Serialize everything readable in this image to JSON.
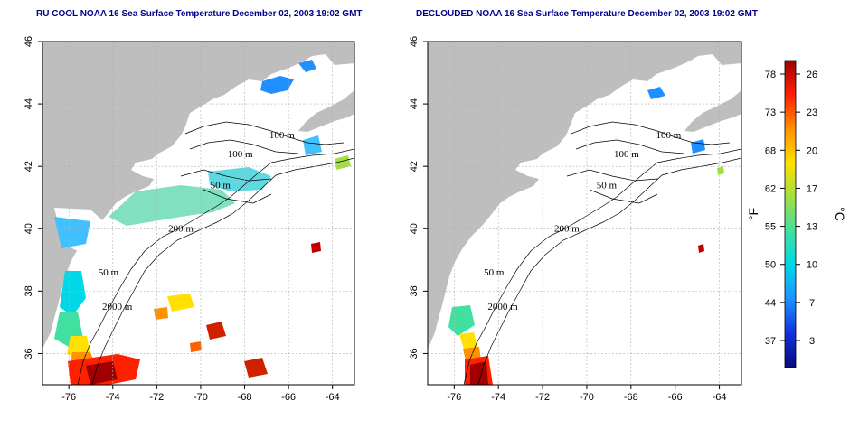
{
  "panels": [
    {
      "title": "RU COOL NOAA 16 Sea Surface Temperature December 02, 2003 19:02 GMT",
      "contours": [
        {
          "label": "100 m",
          "lon": -66.3,
          "lat": 42.9
        },
        {
          "label": "100 m",
          "lon": -68.2,
          "lat": 42.3
        },
        {
          "label": "50 m",
          "lon": -69.1,
          "lat": 41.3
        },
        {
          "label": "200 m",
          "lon": -70.9,
          "lat": 39.9
        },
        {
          "label": "50 m",
          "lon": -74.2,
          "lat": 38.5
        },
        {
          "label": "2000 m",
          "lon": -73.8,
          "lat": 37.4
        }
      ]
    },
    {
      "title": "DECLOUDED NOAA 16 Sea Surface Temperature December 02, 2003 19:02 GMT",
      "contours": [
        {
          "label": "100 m",
          "lon": -66.3,
          "lat": 42.9
        },
        {
          "label": "100 m",
          "lon": -68.2,
          "lat": 42.3
        },
        {
          "label": "50 m",
          "lon": -69.1,
          "lat": 41.3
        },
        {
          "label": "200 m",
          "lon": -70.9,
          "lat": 39.9
        },
        {
          "label": "50 m",
          "lon": -74.2,
          "lat": 38.5
        },
        {
          "label": "2000 m",
          "lon": -73.8,
          "lat": 37.4
        }
      ]
    }
  ],
  "axes": {
    "lon_ticks": [
      "-76",
      "-74",
      "-72",
      "-70",
      "-68",
      "-66",
      "-64"
    ],
    "lat_ticks": [
      "36",
      "38",
      "40",
      "42",
      "44",
      "46"
    ],
    "lon_range": [
      -77.2,
      -63.0
    ],
    "lat_range": [
      35.0,
      46.0
    ]
  },
  "colorbar": {
    "f_label": "°F",
    "c_label": "°C",
    "f_ticks": [
      "78",
      "73",
      "68",
      "62",
      "55",
      "50",
      "44",
      "37"
    ],
    "c_ticks": [
      "26",
      "23",
      "20",
      "17",
      "13",
      "10",
      "7",
      "3"
    ],
    "colors": [
      "#0a0a7a",
      "#1030e0",
      "#1e90ff",
      "#00d8e8",
      "#40e0a0",
      "#a0e040",
      "#ffe000",
      "#ff9000",
      "#ff2000",
      "#a00000"
    ]
  },
  "colors": {
    "land": "#bebebe",
    "ocean": "#ffffff",
    "cloud": "#ffffff",
    "contour": "#000000",
    "grid": "#b0b0b0",
    "title": "#00008b"
  }
}
